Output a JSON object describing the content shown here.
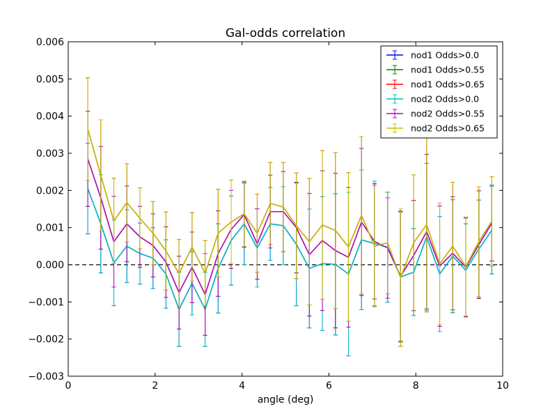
{
  "chart_data": {
    "type": "line",
    "title": "Gal-odds correlation",
    "xlabel": "angle (deg)",
    "ylabel": "",
    "xlim": [
      0,
      10
    ],
    "ylim": [
      -0.003,
      0.006
    ],
    "x_ticks": [
      "0",
      "2",
      "4",
      "6",
      "8",
      "10"
    ],
    "y_ticks": [
      "−0.003",
      "−0.002",
      "−0.001",
      "0.000",
      "0.001",
      "0.002",
      "0.003",
      "0.004",
      "0.005",
      "0.006"
    ],
    "x_tick_values": [
      0,
      2,
      4,
      6,
      8,
      10
    ],
    "y_tick_values": [
      -0.003,
      -0.002,
      -0.001,
      0.0,
      0.001,
      0.002,
      0.003,
      0.004,
      0.005,
      0.006
    ],
    "grid": false,
    "legend_position": "top-right",
    "reference_line": {
      "y": 0.0,
      "style": "dashed",
      "color": "#000000"
    },
    "x": [
      0.45,
      0.75,
      1.05,
      1.35,
      1.65,
      1.95,
      2.25,
      2.55,
      2.85,
      3.15,
      3.45,
      3.75,
      4.05,
      4.35,
      4.65,
      4.95,
      5.25,
      5.55,
      5.85,
      6.15,
      6.45,
      6.75,
      7.05,
      7.35,
      7.65,
      7.95,
      8.25,
      8.55,
      8.85,
      9.15,
      9.45,
      9.75
    ],
    "series": [
      {
        "name": "nod1 Odds>0.0",
        "color": "#0000ff",
        "values": [
          0.00205,
          0.0011,
          5e-05,
          0.0005,
          0.0003,
          0.00018,
          -0.00025,
          -0.0012,
          -0.0005,
          -0.0012,
          -0.0001,
          0.00065,
          0.0011,
          0.00045,
          0.0011,
          0.00105,
          0.00055,
          -0.0001,
          3e-05,
          1e-05,
          -0.00025,
          0.00067,
          0.00057,
          0.00047,
          -0.00033,
          -0.0002,
          0.00075,
          -0.00025,
          0.00023,
          -0.00015,
          0.00042,
          0.00093
        ],
        "errors": [
          0.00122,
          0.00132,
          0.00115,
          0.00098,
          0.00082,
          0.00082,
          0.00092,
          0.001,
          0.00085,
          0.001,
          0.0012,
          0.0012,
          0.0011,
          0.00105,
          0.00098,
          0.00105,
          0.00165,
          0.0016,
          0.0018,
          0.0019,
          0.0022,
          0.00188,
          0.00168,
          0.00148,
          0.00175,
          0.00117,
          0.00198,
          0.00155,
          0.00152,
          0.00125,
          0.00132,
          0.00118
        ]
      },
      {
        "name": "nod1 Odds>0.55",
        "color": "#008000",
        "values": [
          0.00285,
          0.0018,
          0.00062,
          0.0011,
          0.00075,
          0.00052,
          7e-05,
          -0.00075,
          -7e-05,
          -0.0008,
          0.0003,
          0.00095,
          0.00135,
          0.00056,
          0.00143,
          0.00143,
          0.001,
          0.00027,
          0.00065,
          0.00038,
          0.0002,
          0.00115,
          0.00063,
          0.00045,
          -0.00031,
          0.00025,
          0.00089,
          -4e-05,
          0.00031,
          -7e-05,
          0.00054,
          0.00112
        ],
        "errors": [
          0.00128,
          0.00138,
          0.00122,
          0.00102,
          0.00082,
          0.00085,
          0.00095,
          0.00098,
          0.00095,
          0.0011,
          0.00115,
          0.00105,
          0.00088,
          0.00095,
          0.00098,
          0.00108,
          0.00122,
          0.00165,
          0.00188,
          0.00208,
          0.00188,
          0.00198,
          0.00155,
          0.00135,
          0.00175,
          0.00148,
          0.00208,
          0.00162,
          0.00152,
          0.00133,
          0.00145,
          0.00102
        ]
      },
      {
        "name": "nod1 Odds>0.65",
        "color": "#ff0000",
        "values": [
          0.00365,
          0.0024,
          0.00118,
          0.00167,
          0.00125,
          0.00085,
          0.00037,
          -0.00024,
          0.00048,
          -0.00023,
          0.00085,
          0.00115,
          0.00137,
          0.00085,
          0.00165,
          0.00155,
          0.00105,
          0.00062,
          0.00107,
          0.00092,
          0.00048,
          0.00133,
          0.0005,
          0.00059,
          -0.00035,
          0.00059,
          0.00108,
          2e-05,
          0.0005,
          -5e-05,
          0.00062,
          0.00117
        ],
        "errors": [
          0.00138,
          0.0015,
          0.00115,
          0.00105,
          0.00082,
          0.00085,
          0.00105,
          0.00092,
          0.00092,
          0.00088,
          0.00118,
          0.00113,
          0.00088,
          0.00105,
          0.0011,
          0.0012,
          0.00142,
          0.0017,
          0.002,
          0.0021,
          0.002,
          0.00212,
          0.00163,
          0.00137,
          0.00185,
          0.00183,
          0.00235,
          0.00164,
          0.00172,
          0.00133,
          0.00148,
          0.0012
        ]
      },
      {
        "name": "nod2 Odds>0.0",
        "color": "#00bfbf",
        "values": [
          0.00205,
          0.0011,
          5e-05,
          0.0005,
          0.0003,
          0.00018,
          -0.00025,
          -0.0012,
          -0.0005,
          -0.0012,
          -0.0001,
          0.00065,
          0.0011,
          0.00045,
          0.0011,
          0.00105,
          0.00055,
          -0.0001,
          3e-05,
          1e-05,
          -0.00025,
          0.00067,
          0.00057,
          0.00047,
          -0.00033,
          -0.0002,
          0.00075,
          -0.00025,
          0.00023,
          -0.00015,
          0.00042,
          0.00093
        ],
        "errors": [
          0.00122,
          0.00132,
          0.00115,
          0.00098,
          0.00082,
          0.00082,
          0.00092,
          0.001,
          0.00085,
          0.001,
          0.0012,
          0.0012,
          0.0011,
          0.00105,
          0.00098,
          0.00105,
          0.00165,
          0.0016,
          0.0018,
          0.0019,
          0.0022,
          0.00188,
          0.00168,
          0.00148,
          0.00175,
          0.00117,
          0.00198,
          0.00155,
          0.00152,
          0.00125,
          0.00132,
          0.00118
        ]
      },
      {
        "name": "nod2 Odds>0.55",
        "color": "#bf00bf",
        "values": [
          0.00285,
          0.0018,
          0.00062,
          0.0011,
          0.00075,
          0.00052,
          7e-05,
          -0.00075,
          -7e-05,
          -0.0008,
          0.0003,
          0.00095,
          0.00135,
          0.00056,
          0.00143,
          0.00143,
          0.001,
          0.00027,
          0.00065,
          0.00038,
          0.0002,
          0.00115,
          0.00063,
          0.00045,
          -0.00031,
          0.00025,
          0.00089,
          -4e-05,
          0.00031,
          -7e-05,
          0.00054,
          0.00112
        ],
        "errors": [
          0.00128,
          0.00138,
          0.00122,
          0.00102,
          0.00082,
          0.00085,
          0.00095,
          0.00098,
          0.00095,
          0.0011,
          0.00115,
          0.00105,
          0.00088,
          0.00095,
          0.00098,
          0.00108,
          0.00122,
          0.00165,
          0.00188,
          0.00208,
          0.00188,
          0.00198,
          0.00155,
          0.00135,
          0.00175,
          0.00148,
          0.00208,
          0.00162,
          0.00152,
          0.00133,
          0.00145,
          0.00102
        ]
      },
      {
        "name": "nod2 Odds>0.65",
        "color": "#bfbf00",
        "values": [
          0.00365,
          0.0024,
          0.00118,
          0.00167,
          0.00125,
          0.00085,
          0.00037,
          -0.00024,
          0.00048,
          -0.00023,
          0.00085,
          0.00115,
          0.00137,
          0.00085,
          0.00165,
          0.00155,
          0.00105,
          0.00062,
          0.00107,
          0.00092,
          0.00048,
          0.00133,
          0.0005,
          0.00059,
          -0.00035,
          0.00059,
          0.00108,
          2e-05,
          0.0005,
          -5e-05,
          0.00062,
          0.00117
        ],
        "errors": [
          0.00138,
          0.0015,
          0.00115,
          0.00105,
          0.00082,
          0.00085,
          0.00105,
          0.00092,
          0.00092,
          0.00088,
          0.00118,
          0.00113,
          0.00088,
          0.00105,
          0.0011,
          0.0012,
          0.00142,
          0.0017,
          0.002,
          0.0021,
          0.002,
          0.00212,
          0.00163,
          0.00137,
          0.00185,
          0.00183,
          0.00235,
          0.00164,
          0.00172,
          0.00133,
          0.00148,
          0.0012
        ]
      }
    ]
  }
}
